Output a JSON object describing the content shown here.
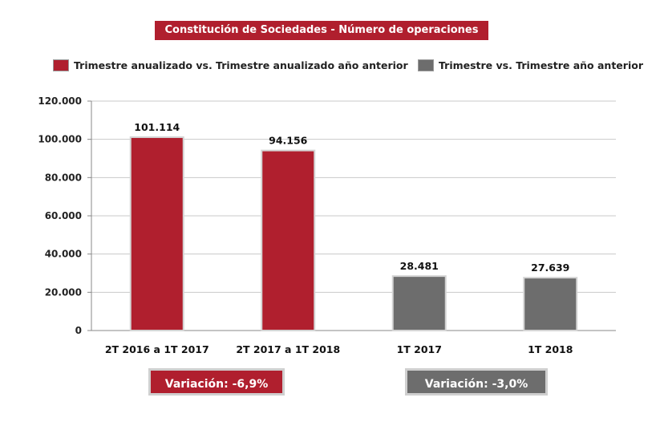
{
  "chart_data": {
    "type": "bar",
    "title": "Constitución de Sociedades - Número de operaciones",
    "xlabel": "",
    "ylabel": "",
    "ylim": [
      0,
      120000
    ],
    "yticks": [
      "0",
      "20.000",
      "40.000",
      "60.000",
      "80.000",
      "100.000",
      "120.000"
    ],
    "ytick_values": [
      0,
      20000,
      40000,
      60000,
      80000,
      100000,
      120000
    ],
    "grid": true,
    "legend": [
      {
        "label": "Trimestre anualizado vs. Trimestre anualizado año anterior",
        "color": "#b01f2e"
      },
      {
        "label": "Trimestre vs. Trimestre año anterior",
        "color": "#6d6d6d"
      }
    ],
    "categories": [
      "2T 2016 a 1T 2017",
      "2T 2017 a 1T 2018",
      "1T 2017",
      "1T 2018"
    ],
    "values": [
      101114,
      94156,
      28481,
      27639
    ],
    "value_labels": [
      "101.114",
      "94.156",
      "28.481",
      "27.639"
    ],
    "colors": [
      "#b01f2e",
      "#b01f2e",
      "#6d6d6d",
      "#6d6d6d"
    ],
    "annotations": [
      {
        "text": "Variación:  -6,9%",
        "color": "#b01f2e"
      },
      {
        "text": "Variación: -3,0%",
        "color": "#6d6d6d"
      }
    ]
  }
}
